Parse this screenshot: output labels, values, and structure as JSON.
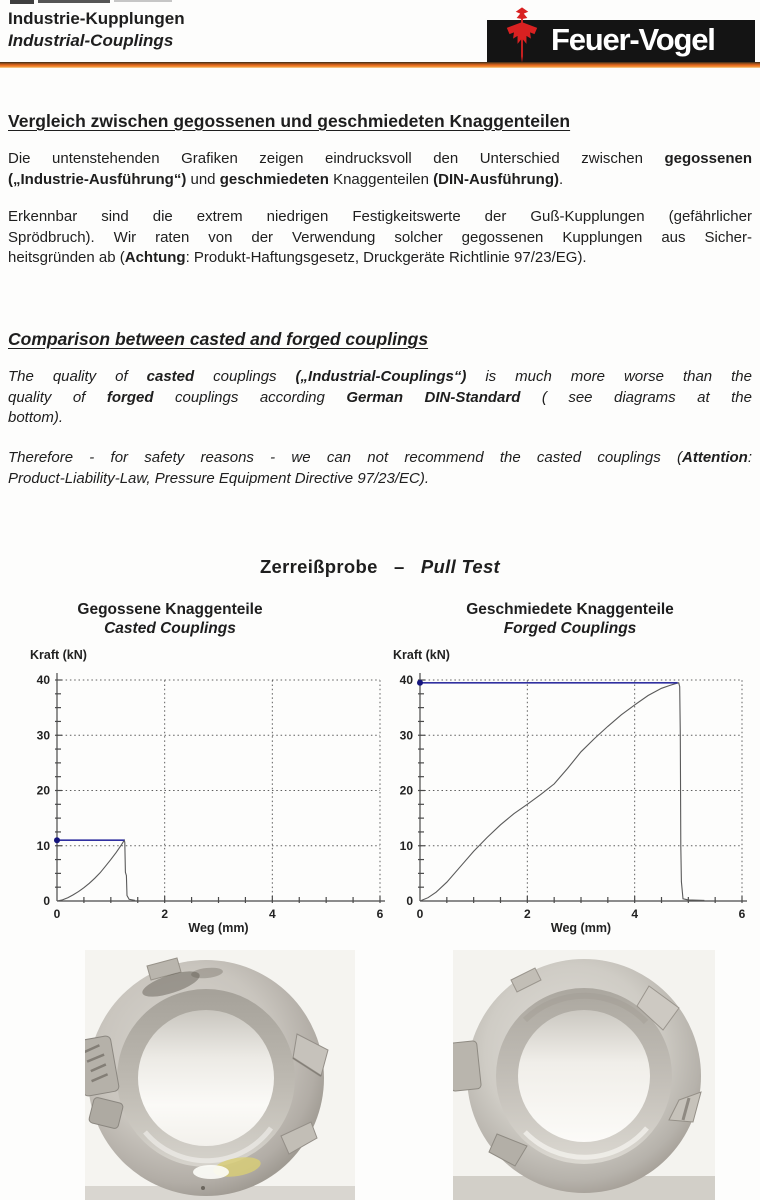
{
  "header": {
    "title_de": "Industrie-Kupplungen",
    "title_en": "Industrial-Couplings",
    "logo": {
      "text": "Feuer-Vogel",
      "icon": "firebird-icon",
      "box_color": "#141414",
      "bird_color": "#d92121",
      "text_color": "#ffffff"
    },
    "rule_accent": "#e8671d"
  },
  "sections": {
    "german": {
      "heading": "Vergleich zwischen gegossenen und geschmiedeten Knaggenteilen",
      "para1": {
        "lines": [
          {
            "j": true,
            "runs": [
              {
                "t": "Die untenstehenden Grafiken zeigen eindrucksvoll den Unterschied zwischen "
              },
              {
                "t": "gegossenen",
                "b": true
              }
            ]
          },
          {
            "j": false,
            "runs": [
              {
                "t": "(„Industrie-Ausführung“)",
                "b": true
              },
              {
                "t": " und "
              },
              {
                "t": "geschmiedeten",
                "b": true
              },
              {
                "t": " Knaggenteilen "
              },
              {
                "t": "(DIN-Ausführung)",
                "b": true
              },
              {
                "t": "."
              }
            ]
          }
        ]
      },
      "para2": {
        "lines": [
          {
            "j": true,
            "runs": [
              {
                "t": "Erkennbar sind die extrem niedrigen Festigkeitswerte der Guß-Kupplungen (gefährlicher"
              }
            ]
          },
          {
            "j": true,
            "runs": [
              {
                "t": "Sprödbruch). Wir raten von der Verwendung solcher gegossenen Kupplungen aus Sicher-"
              }
            ]
          },
          {
            "j": false,
            "runs": [
              {
                "t": "heitsgründen ab ("
              },
              {
                "t": "Achtung",
                "b": true
              },
              {
                "t": ": Produkt-Haftungsgesetz, Druckgeräte Richtlinie 97/23/EG)."
              }
            ]
          }
        ]
      }
    },
    "english": {
      "heading": "Comparison between casted and forged couplings",
      "para1": {
        "lines": [
          {
            "j": true,
            "runs": [
              {
                "t": "The quality of "
              },
              {
                "t": "casted",
                "b": true
              },
              {
                "t": " couplings "
              },
              {
                "t": "(„Industrial-Couplings“)",
                "b": true
              },
              {
                "t": " is much more worse than the"
              }
            ]
          },
          {
            "j": true,
            "runs": [
              {
                "t": "quality of "
              },
              {
                "t": "forged",
                "b": true
              },
              {
                "t": " couplings according "
              },
              {
                "t": "German DIN-Standard",
                "b": true
              },
              {
                "t": " ( see diagrams at the"
              }
            ]
          },
          {
            "j": false,
            "runs": [
              {
                "t": "bottom)."
              }
            ]
          }
        ]
      },
      "para2": {
        "lines": [
          {
            "j": true,
            "runs": [
              {
                "t": "Therefore - for safety reasons - we can not recommend the casted couplings ("
              },
              {
                "t": "Attention",
                "b": true
              },
              {
                "t": ":"
              }
            ]
          },
          {
            "j": false,
            "runs": [
              {
                "t": "Product-Liability-Law, Pressure Equipment Directive 97/23/EC)."
              }
            ]
          }
        ]
      }
    }
  },
  "pull_test": {
    "title_runs": [
      {
        "t": "Zerreißprobe",
        "b": true
      },
      {
        "t": "   –   ",
        "b": true
      },
      {
        "t": "Pull Test",
        "b": true,
        "i": true
      }
    ],
    "left": {
      "title_de": "Gegossene Knaggenteile",
      "title_en": "Casted Couplings"
    },
    "right": {
      "title_de": "Geschmiedete Knaggenteile",
      "title_en": "Forged Couplings"
    }
  },
  "chart_data": [
    {
      "type": "line",
      "title": "Gegossene Knaggenteile / Casted Couplings",
      "xlabel": "Weg (mm)",
      "ylabel": "Kraft (kN)",
      "xlim": [
        0,
        6
      ],
      "ylim": [
        0,
        40
      ],
      "xticks": [
        0,
        2,
        4,
        6
      ],
      "yticks": [
        0,
        10,
        20,
        30,
        40
      ],
      "x_minor_step": 0.5,
      "y_minor_step": 2.5,
      "grid": "dotted",
      "peak_kN": 11,
      "break_mm": 1.3,
      "series": [
        {
          "name": "force-displacement-curve",
          "color": "#5a5a5a",
          "points": [
            [
              0,
              0
            ],
            [
              0.1,
              0.2
            ],
            [
              0.2,
              0.6
            ],
            [
              0.3,
              1.1
            ],
            [
              0.4,
              1.7
            ],
            [
              0.5,
              2.4
            ],
            [
              0.6,
              3.2
            ],
            [
              0.7,
              4.1
            ],
            [
              0.8,
              5.1
            ],
            [
              0.9,
              6.3
            ],
            [
              1.0,
              7.5
            ],
            [
              1.1,
              8.8
            ],
            [
              1.2,
              10.2
            ],
            [
              1.25,
              11
            ],
            [
              1.26,
              10.6
            ],
            [
              1.27,
              5.2
            ],
            [
              1.29,
              4.6
            ],
            [
              1.3,
              1.0
            ],
            [
              1.34,
              0.3
            ],
            [
              1.45,
              0.1
            ]
          ]
        },
        {
          "name": "peak-force-line",
          "color": "#3030a0",
          "points": [
            [
              0,
              11
            ],
            [
              1.25,
              11
            ]
          ],
          "marker": [
            0,
            11
          ]
        }
      ]
    },
    {
      "type": "line",
      "title": "Geschmiedete Knaggenteile / Forged Couplings",
      "xlabel": "Weg (mm)",
      "ylabel": "Kraft (kN)",
      "xlim": [
        0,
        6
      ],
      "ylim": [
        0,
        40
      ],
      "xticks": [
        0,
        2,
        4,
        6
      ],
      "yticks": [
        0,
        10,
        20,
        30,
        40
      ],
      "x_minor_step": 0.5,
      "y_minor_step": 2.5,
      "grid": "dotted",
      "peak_kN": 39.5,
      "break_mm": 4.85,
      "series": [
        {
          "name": "force-displacement-curve",
          "color": "#5a5a5a",
          "points": [
            [
              0,
              0
            ],
            [
              0.15,
              0.6
            ],
            [
              0.3,
              1.6
            ],
            [
              0.5,
              3.4
            ],
            [
              0.75,
              6.2
            ],
            [
              1.0,
              9.0
            ],
            [
              1.25,
              11.5
            ],
            [
              1.5,
              13.8
            ],
            [
              1.75,
              15.8
            ],
            [
              2.0,
              17.5
            ],
            [
              2.25,
              19.3
            ],
            [
              2.5,
              21.2
            ],
            [
              2.75,
              24.0
            ],
            [
              3.0,
              27.0
            ],
            [
              3.25,
              29.4
            ],
            [
              3.5,
              31.6
            ],
            [
              3.75,
              33.7
            ],
            [
              4.0,
              35.5
            ],
            [
              4.25,
              37.2
            ],
            [
              4.5,
              38.5
            ],
            [
              4.65,
              39.0
            ],
            [
              4.78,
              39.4
            ],
            [
              4.82,
              39.5
            ],
            [
              4.84,
              38.8
            ],
            [
              4.85,
              30.0
            ],
            [
              4.86,
              10.0
            ],
            [
              4.87,
              3.5
            ],
            [
              4.9,
              0.4
            ],
            [
              5.0,
              0.2
            ],
            [
              5.3,
              0.1
            ]
          ]
        },
        {
          "name": "peak-force-line",
          "color": "#3030a0",
          "points": [
            [
              0,
              39.5
            ],
            [
              4.8,
              39.5
            ]
          ],
          "marker": [
            0,
            39.5
          ]
        }
      ]
    }
  ]
}
